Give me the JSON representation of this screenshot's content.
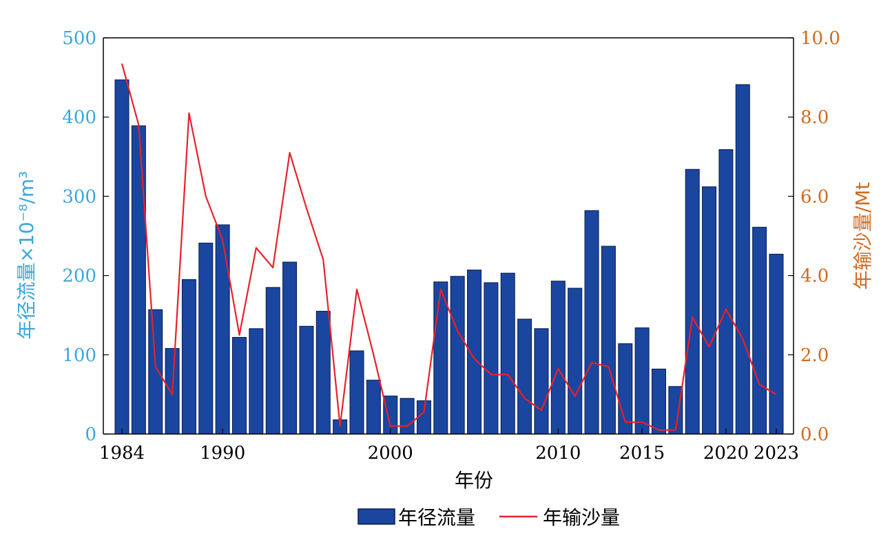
{
  "colors": {
    "bar": "#1a46a0",
    "bar_edge": "#0a1a4a",
    "line": "#e8202a",
    "left_axis": "#3aa6dc",
    "right_axis": "#d2691e"
  },
  "chart_data": {
    "type": "bar",
    "xlabel": "年份",
    "ylabel_left": "年径流量×10⁻⁸/m³",
    "ylabel_right": "年输沙量/Mt",
    "ylim_left": [
      0,
      500
    ],
    "ylim_right": [
      0,
      10
    ],
    "yticks_left": [
      "0",
      "100",
      "200",
      "300",
      "400",
      "500"
    ],
    "yticks_right": [
      "0.0",
      "2.0",
      "4.0",
      "6.0",
      "8.0",
      "10.0"
    ],
    "xticks": [
      "1984",
      "1990",
      "2000",
      "2010",
      "2015",
      "2020",
      "2023"
    ],
    "legend": {
      "placement": "bottom-center"
    },
    "x": [
      1984,
      1985,
      1986,
      1987,
      1988,
      1989,
      1990,
      1991,
      1992,
      1993,
      1994,
      1995,
      1996,
      1997,
      1998,
      1999,
      2000,
      2001,
      2002,
      2003,
      2004,
      2005,
      2006,
      2007,
      2008,
      2009,
      2010,
      2011,
      2012,
      2013,
      2014,
      2015,
      2016,
      2017,
      2018,
      2019,
      2020,
      2021,
      2022,
      2023
    ],
    "series": [
      {
        "name": "年径流量",
        "type": "bar",
        "axis": "left",
        "values": [
          447,
          389,
          157,
          108,
          195,
          241,
          264,
          122,
          133,
          185,
          217,
          136,
          155,
          18,
          105,
          68,
          48,
          45,
          42,
          192,
          199,
          207,
          191,
          203,
          145,
          133,
          193,
          184,
          282,
          237,
          114,
          134,
          82,
          60,
          334,
          312,
          359,
          441,
          261,
          227
        ]
      },
      {
        "name": "年输沙量",
        "type": "line",
        "axis": "right",
        "values": [
          9.35,
          7.8,
          1.7,
          1.0,
          8.1,
          6.0,
          4.9,
          2.5,
          4.7,
          4.2,
          7.1,
          5.7,
          4.4,
          0.2,
          3.65,
          2.0,
          0.2,
          0.2,
          0.55,
          3.65,
          2.6,
          1.9,
          1.5,
          1.5,
          0.9,
          0.6,
          1.65,
          0.95,
          1.8,
          1.7,
          0.3,
          0.3,
          0.1,
          0.1,
          2.95,
          2.2,
          3.15,
          2.4,
          1.25,
          1.0
        ]
      }
    ]
  }
}
